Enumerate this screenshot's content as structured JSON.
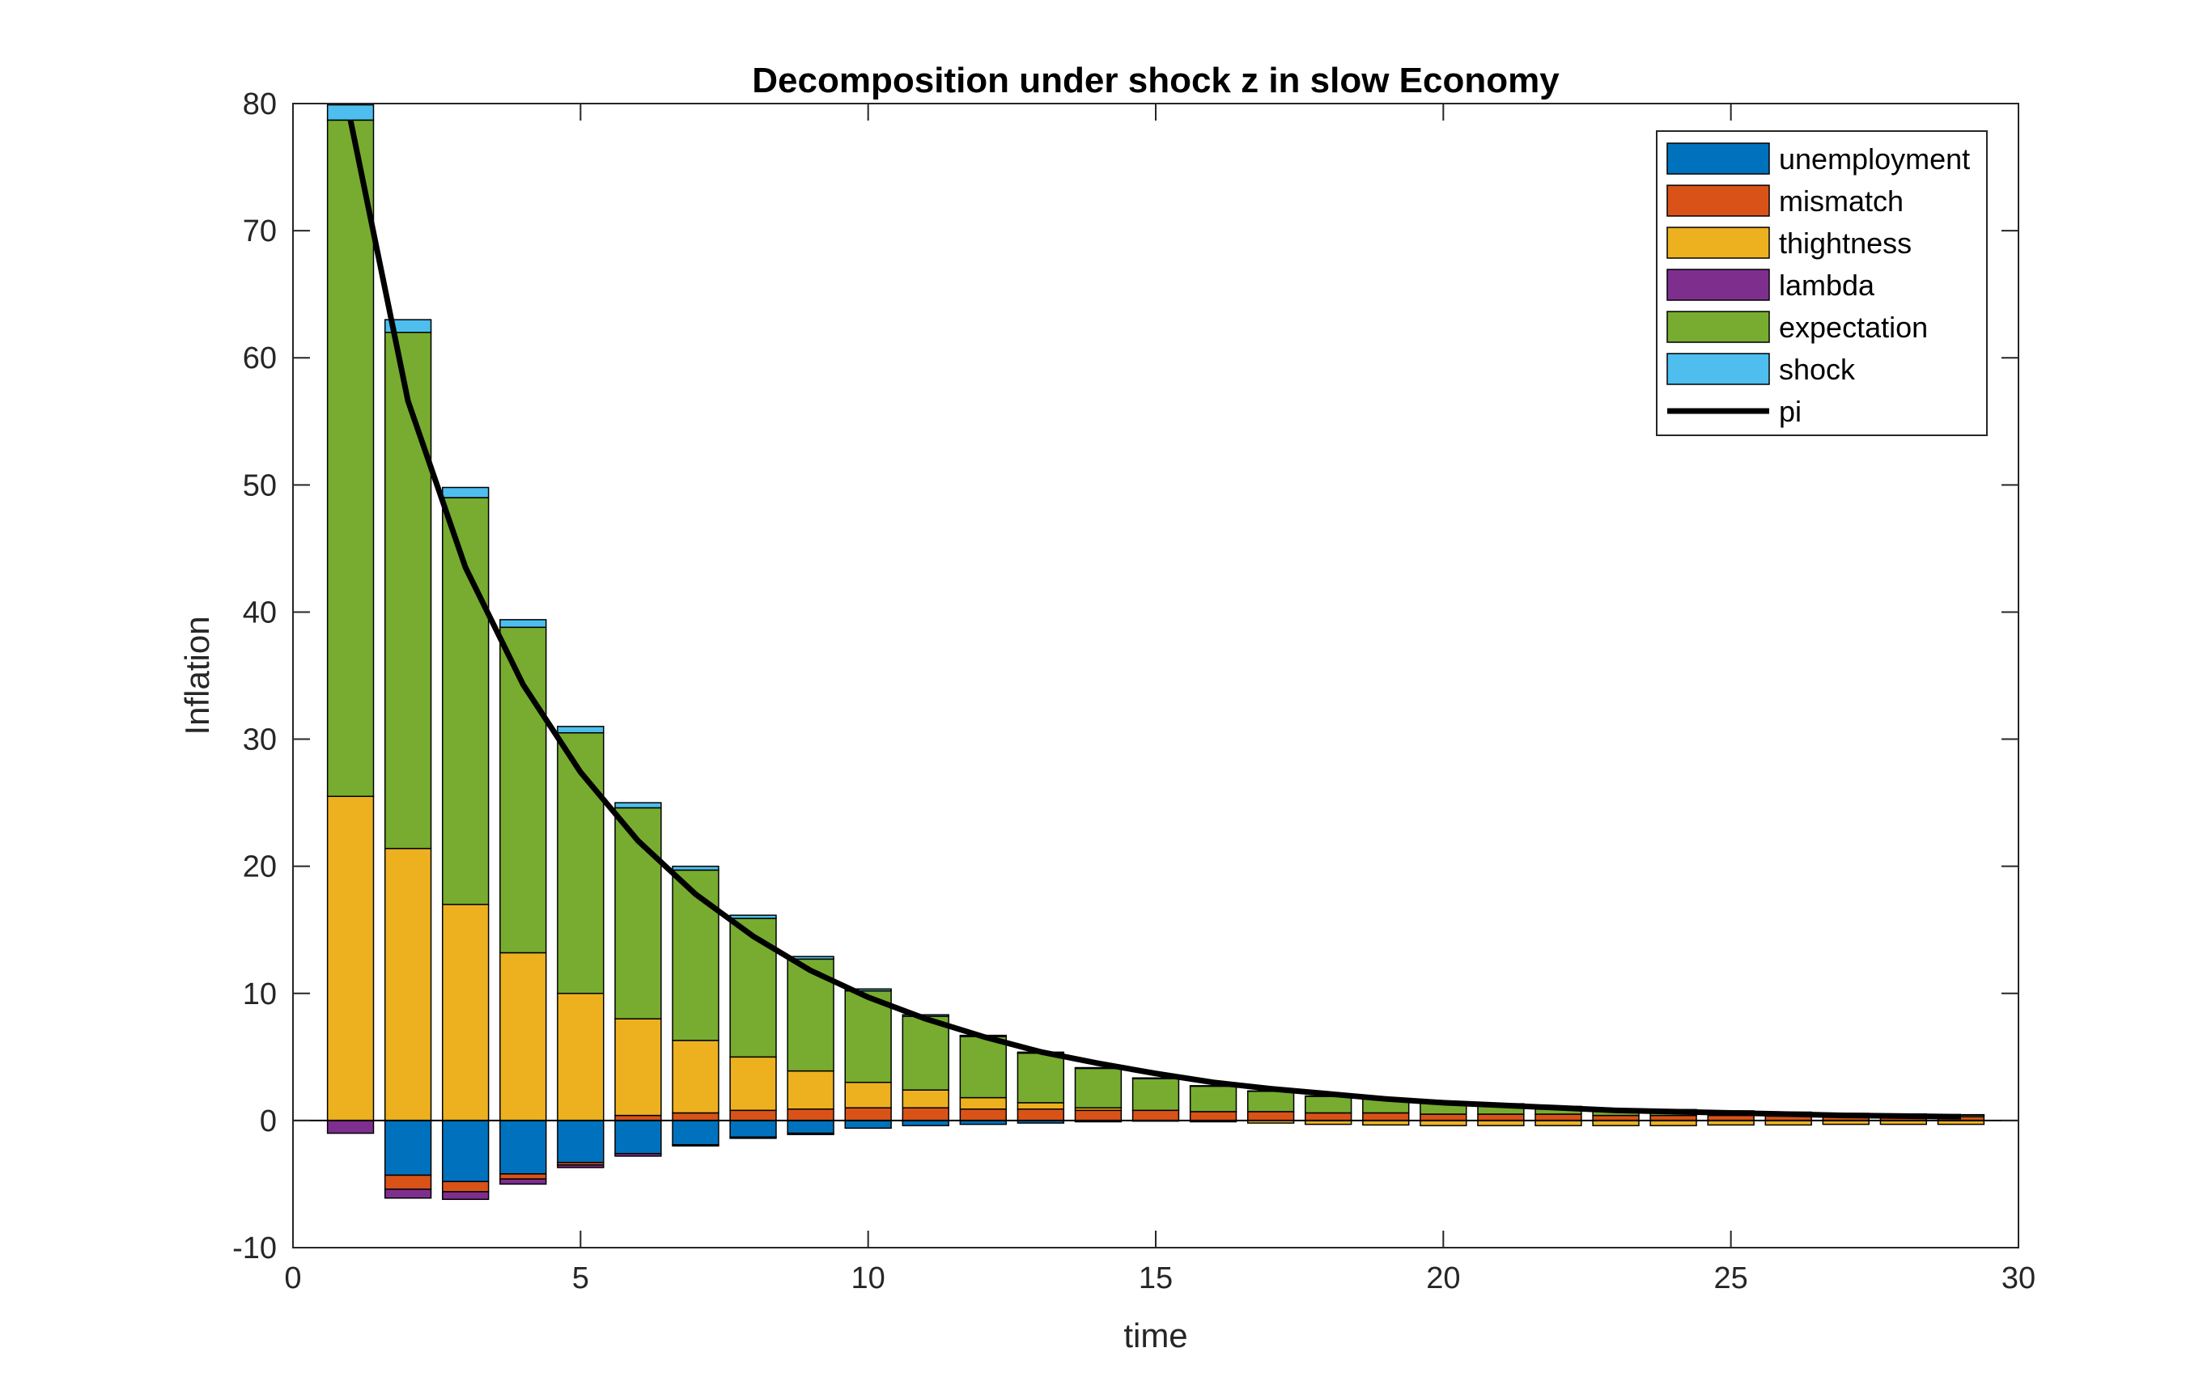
{
  "chart_data": {
    "type": "bar",
    "title": "Decomposition under shock z in slow Economy",
    "xlabel": "time",
    "ylabel": "Inflation",
    "xlim": [
      0,
      30
    ],
    "ylim": [
      -10,
      80
    ],
    "xticks": [
      "0",
      "5",
      "10",
      "15",
      "20",
      "25",
      "30"
    ],
    "yticks": [
      "-10",
      "0",
      "10",
      "20",
      "30",
      "40",
      "50",
      "60",
      "70",
      "80"
    ],
    "legend_position": "top-right",
    "x": [
      1,
      2,
      3,
      4,
      5,
      6,
      7,
      8,
      9,
      10,
      11,
      12,
      13,
      14,
      15,
      16,
      17,
      18,
      19,
      20,
      21,
      22,
      23,
      24,
      25,
      26,
      27,
      28,
      29
    ],
    "series": [
      {
        "name": "unemployment",
        "color": "#0072BD",
        "values": [
          0,
          -4.3,
          -4.8,
          -4.2,
          -3.3,
          -2.6,
          -1.9,
          -1.3,
          -1.0,
          -0.6,
          -0.4,
          -0.3,
          -0.2,
          -0.1,
          -0.05,
          0,
          0,
          0,
          0,
          0,
          0,
          0,
          0,
          0,
          0,
          0,
          0,
          0,
          0
        ]
      },
      {
        "name": "mismatch",
        "color": "#D95319",
        "values": [
          0,
          -1.1,
          -0.8,
          -0.4,
          -0.2,
          0.4,
          0.6,
          0.8,
          0.9,
          1.0,
          1.0,
          0.9,
          0.9,
          0.8,
          0.8,
          0.7,
          0.7,
          0.6,
          0.6,
          0.5,
          0.5,
          0.5,
          0.4,
          0.4,
          0.4,
          0.35,
          0.3,
          0.3,
          0.3
        ]
      },
      {
        "name": "thightness",
        "color": "#EDB120",
        "values": [
          25.5,
          21.4,
          17.0,
          13.2,
          10.0,
          7.6,
          5.7,
          4.2,
          3.0,
          2.0,
          1.4,
          0.9,
          0.5,
          0.2,
          0,
          -0.1,
          -0.2,
          -0.3,
          -0.35,
          -0.4,
          -0.4,
          -0.4,
          -0.4,
          -0.4,
          -0.35,
          -0.35,
          -0.3,
          -0.3,
          -0.3
        ]
      },
      {
        "name": "lambda",
        "color": "#7E2F8E",
        "values": [
          -1.0,
          -0.7,
          -0.6,
          -0.4,
          -0.2,
          -0.2,
          -0.1,
          -0.1,
          -0.1,
          0,
          0,
          0,
          0,
          0,
          0,
          0,
          0,
          0,
          0,
          0,
          0,
          0,
          0,
          0,
          0,
          0,
          0,
          0,
          0
        ]
      },
      {
        "name": "expectation",
        "color": "#77AC30",
        "values": [
          53.2,
          40.6,
          32.0,
          25.6,
          20.5,
          16.6,
          13.4,
          10.9,
          8.8,
          7.2,
          5.8,
          4.8,
          3.9,
          3.1,
          2.5,
          2.0,
          1.6,
          1.3,
          1.1,
          0.9,
          0.8,
          0.6,
          0.5,
          0.45,
          0.35,
          0.3,
          0.25,
          0.2,
          0.15
        ]
      },
      {
        "name": "shock",
        "color": "#4DBEEE",
        "values": [
          1.2,
          1.0,
          0.8,
          0.6,
          0.5,
          0.4,
          0.3,
          0.25,
          0.2,
          0.15,
          0.12,
          0.1,
          0.08,
          0.06,
          0.05,
          0.04,
          0.03,
          0.03,
          0.02,
          0.02,
          0.02,
          0.01,
          0.01,
          0.01,
          0.01,
          0.01,
          0.01,
          0.01,
          0.01
        ]
      }
    ],
    "line_series": {
      "name": "pi",
      "color": "#000000",
      "values": [
        78.7,
        56.6,
        43.5,
        34.3,
        27.4,
        22.0,
        17.8,
        14.5,
        11.8,
        9.7,
        8.0,
        6.6,
        5.4,
        4.5,
        3.7,
        3.0,
        2.5,
        2.1,
        1.7,
        1.4,
        1.2,
        1.0,
        0.8,
        0.7,
        0.6,
        0.5,
        0.4,
        0.35,
        0.3
      ]
    }
  }
}
